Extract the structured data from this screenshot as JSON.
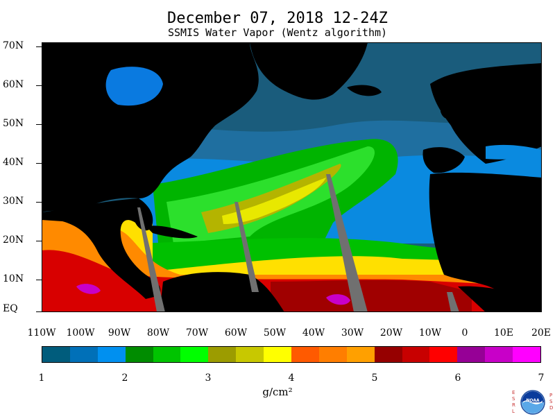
{
  "header": {
    "title": "December 07, 2018 12-24Z",
    "subtitle": "SSMIS Water Vapor (Wentz algorithm)"
  },
  "map": {
    "lat_labels": [
      "70N",
      "60N",
      "50N",
      "40N",
      "30N",
      "20N",
      "10N",
      "EQ"
    ],
    "lon_labels": [
      "110W",
      "100W",
      "90W",
      "80W",
      "70W",
      "60W",
      "50W",
      "40W",
      "30W",
      "20W",
      "10W",
      "0",
      "10E",
      "20E"
    ],
    "land_color": "#000000",
    "no_data_color": "#707070"
  },
  "colorbar": {
    "colors": [
      "#005c7c",
      "#0070b8",
      "#0090f0",
      "#008c00",
      "#00c400",
      "#00ff00",
      "#9c9c00",
      "#c8c800",
      "#ffff00",
      "#ff5a00",
      "#ff7e00",
      "#ffa000",
      "#960000",
      "#c80000",
      "#ff0000",
      "#960096",
      "#c800c8",
      "#ff00ff"
    ],
    "tick_labels": [
      "1",
      "2",
      "3",
      "4",
      "5",
      "6",
      "7"
    ],
    "units": "g/cm²"
  },
  "logo": {
    "name": "NOAA",
    "left_text": "E S R L",
    "right_text": "P S D"
  }
}
